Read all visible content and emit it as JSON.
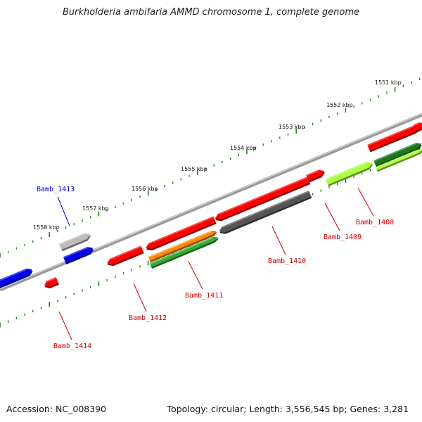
{
  "title": "Burkholderia ambifaria AMMD chromosome 1, complete genome",
  "footer": {
    "accession_label": "Accession:",
    "accession": "NC_008390",
    "topology_label": "Topology:",
    "topology": "circular",
    "length_label": "Length:",
    "length": "3,556,545 bp",
    "genes_label": "Genes:",
    "genes": "3,281"
  },
  "map": {
    "kbp_labels": [
      {
        "name": "kbp-1551",
        "text": "1551 kbp"
      },
      {
        "name": "kbp-1552",
        "text": "1552 kbp"
      },
      {
        "name": "kbp-1553",
        "text": "1553 kbp"
      },
      {
        "name": "kbp-1554",
        "text": "1554 kbp"
      },
      {
        "name": "kbp-1555",
        "text": "1555 kbp"
      },
      {
        "name": "kbp-1556",
        "text": "1556 kbp"
      },
      {
        "name": "kbp-1557",
        "text": "1557 kbp"
      },
      {
        "name": "kbp-1558",
        "text": "1558 kbp"
      }
    ],
    "gene_labels": [
      {
        "name": "Bamb_1413",
        "text": "Bamb_1413",
        "color": "#0000cc"
      },
      {
        "name": "Bamb_1408",
        "text": "Bamb_1408",
        "color": "#cc0000"
      },
      {
        "name": "Bamb_1409",
        "text": "Bamb_1409",
        "color": "#cc0000"
      },
      {
        "name": "Bamb_1410",
        "text": "Bamb_1410",
        "color": "#cc0000"
      },
      {
        "name": "Bamb_1411",
        "text": "Bamb_1411",
        "color": "#cc0000"
      },
      {
        "name": "Bamb_1412",
        "text": "Bamb_1412",
        "color": "#cc0000"
      },
      {
        "name": "Bamb_1414",
        "text": "Bamb_1414",
        "color": "#cc0000"
      }
    ],
    "colors": {
      "cds": "#ff0000",
      "cds_label": "#cc0000",
      "selected_gene": "#0000ee",
      "gene_gray": "#bbbbbb",
      "dark_gray": "#555555",
      "orange": "#ff8800",
      "green": "#33aa33",
      "dark_green": "#1a7a1a",
      "yellow_green": "#aaff44",
      "backbone": "#8a8a8a",
      "tick": "#1a8a1a"
    }
  }
}
